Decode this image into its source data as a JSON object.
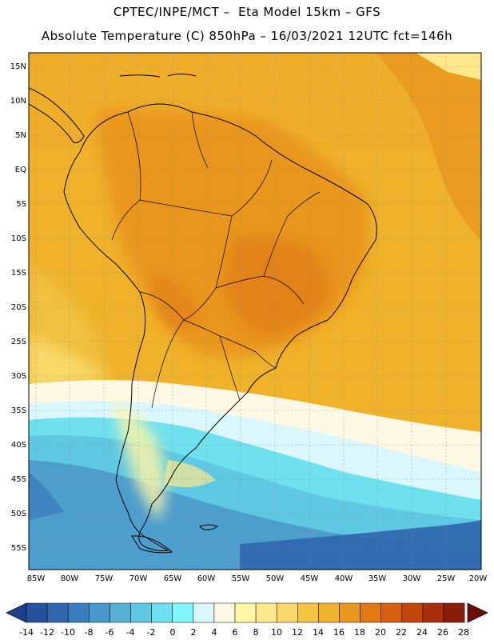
{
  "header": {
    "line1": "CPTEC/INPE/MCT –  Eta Model 15km – GFS",
    "line2": "Absolute Temperature (C) 850hPa – 16/03/2021 12UTC fct=146h"
  },
  "axes": {
    "lat_labels": [
      "15N",
      "10N",
      "5N",
      "EQ",
      "5S",
      "10S",
      "15S",
      "20S",
      "25S",
      "30S",
      "35S",
      "40S",
      "45S",
      "50S",
      "55S"
    ],
    "lon_labels": [
      "85W",
      "80W",
      "75W",
      "70W",
      "65W",
      "60W",
      "55W",
      "50W",
      "45W",
      "40W",
      "35W",
      "30W",
      "25W",
      "20W"
    ]
  },
  "colorbar": {
    "labels": [
      "-14",
      "-12",
      "-10",
      "-8",
      "-6",
      "-4",
      "-2",
      "0",
      "2",
      "4",
      "6",
      "8",
      "10",
      "12",
      "14",
      "16",
      "18",
      "20",
      "22",
      "24",
      "26",
      "28"
    ],
    "colors": [
      "#1d3f8f",
      "#27509f",
      "#2f66ae",
      "#3a7dbd",
      "#4a97c9",
      "#58b0d6",
      "#5fc8e2",
      "#6ee0ee",
      "#7ff6fb",
      "#d9f7fd",
      "#fff8e4",
      "#fff6a6",
      "#fde98c",
      "#f8d96a",
      "#f2c545",
      "#efb22a",
      "#e9961e",
      "#e27a13",
      "#d7600e",
      "#c3470c",
      "#a92f0b",
      "#8b1c0b",
      "#6d0c0c"
    ]
  }
}
